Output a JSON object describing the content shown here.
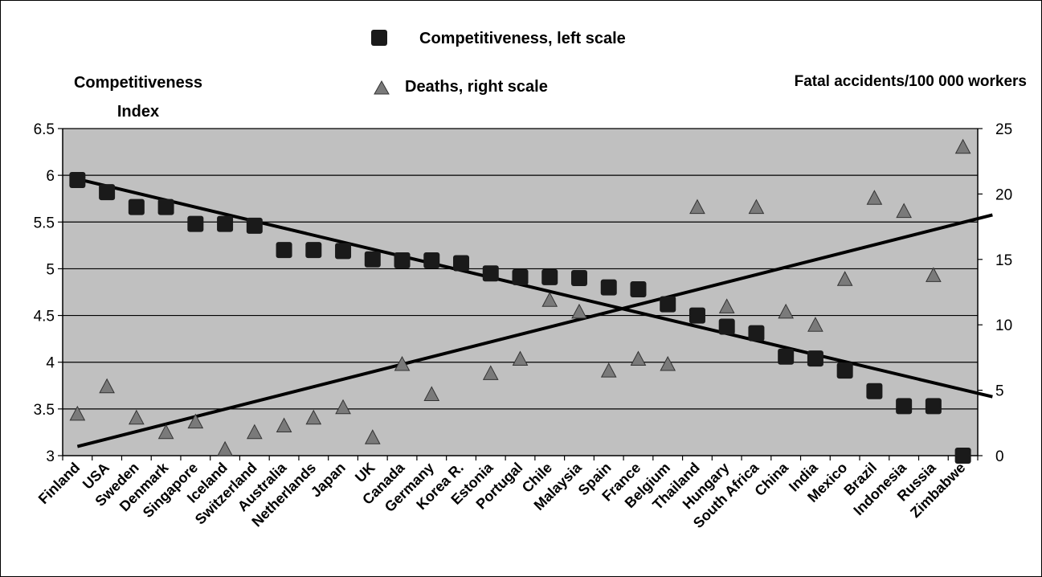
{
  "chart_data": {
    "type": "scatter",
    "left_axis_title": [
      "Competitiveness",
      "Index"
    ],
    "right_axis_title": "Fatal accidents/100 000 workers",
    "legend": [
      {
        "label": "Competitiveness, left scale",
        "marker": "square",
        "color": "#1a1a1a"
      },
      {
        "label": "Deaths, right scale",
        "marker": "triangle",
        "color": "#7a7a7a"
      }
    ],
    "categories": [
      "Finland",
      "USA",
      "Sweden",
      "Denmark",
      "Singapore",
      "Iceland",
      "Switzerland",
      "Australia",
      "Netherlands",
      "Japan",
      "UK",
      "Canada",
      "Germany",
      "Korea R.",
      "Estonia",
      "Portugal",
      "Chile",
      "Malaysia",
      "Spain",
      "France",
      "Belgium",
      "Thailand",
      "Hungary",
      "South Africa",
      "China",
      "India",
      "Mexico",
      "Brazil",
      "Indonesia",
      "Russia",
      "Zimbabwe"
    ],
    "left_ylim": [
      3,
      6.5
    ],
    "left_ticks": [
      "3",
      "3.5",
      "4",
      "4.5",
      "5",
      "5.5",
      "6",
      "6.5"
    ],
    "right_ylim": [
      0,
      25
    ],
    "right_ticks": [
      "0",
      "5",
      "10",
      "15",
      "20",
      "25"
    ],
    "series": [
      {
        "name": "Competitiveness, left scale",
        "axis": "left",
        "values": [
          5.95,
          5.82,
          5.66,
          5.66,
          5.48,
          5.48,
          5.46,
          5.2,
          5.2,
          5.19,
          5.1,
          5.09,
          5.09,
          5.06,
          4.95,
          4.91,
          4.91,
          4.9,
          4.8,
          4.78,
          4.62,
          4.5,
          4.38,
          4.31,
          4.06,
          4.04,
          3.91,
          3.69,
          3.53,
          3.53,
          3.0
        ]
      },
      {
        "name": "Deaths, right scale",
        "axis": "right",
        "values": [
          3.2,
          5.3,
          2.9,
          1.8,
          2.6,
          0.5,
          1.8,
          2.3,
          2.9,
          3.7,
          1.4,
          7.0,
          4.7,
          null,
          6.3,
          7.4,
          11.9,
          11.0,
          6.5,
          7.4,
          7.0,
          19.0,
          11.4,
          19.0,
          11.0,
          10.0,
          13.5,
          19.7,
          18.7,
          13.8,
          23.6
        ]
      }
    ],
    "trendlines": [
      {
        "series": "Competitiveness, left scale",
        "axis": "left",
        "start": 5.96,
        "end": 3.63
      },
      {
        "series": "Deaths, right scale",
        "axis": "right",
        "start": 0.7,
        "end": 18.4
      }
    ],
    "grid": true,
    "plot_background": "#c0c0c0"
  }
}
